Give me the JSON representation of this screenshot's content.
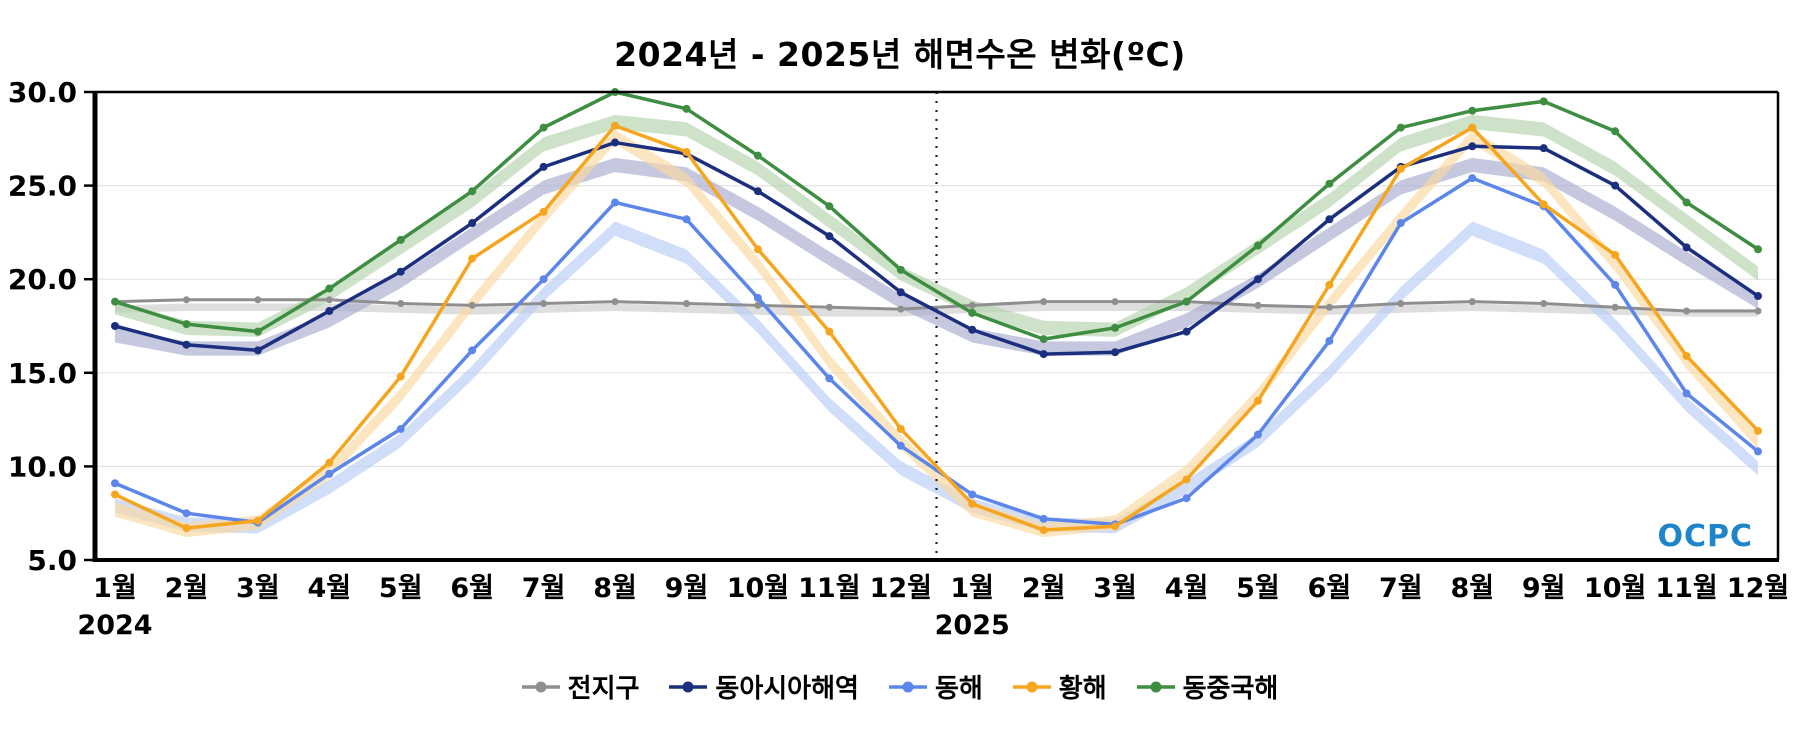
{
  "chart_data": {
    "type": "line",
    "title": "2024년 - 2025년 해면수온 변화(ºC)",
    "xlabel": "",
    "ylabel": "",
    "ylim": [
      5.0,
      30.0
    ],
    "yticks": [
      5.0,
      10.0,
      15.0,
      20.0,
      25.0,
      30.0
    ],
    "grid": true,
    "legend_position": "bottom",
    "divider_index": 11.5,
    "watermark": "OCPC",
    "watermark_color": "#1e86c8",
    "x_tick_labels": [
      "1월",
      "2월",
      "3월",
      "4월",
      "5월",
      "6월",
      "7월",
      "8월",
      "9월",
      "10월",
      "11월",
      "12월",
      "1월",
      "2월",
      "3월",
      "4월",
      "5월",
      "6월",
      "7월",
      "8월",
      "9월",
      "10월",
      "11월",
      "12월"
    ],
    "year_labels": [
      {
        "text": "2024",
        "index": 0
      },
      {
        "text": "2025",
        "index": 12
      }
    ],
    "series": [
      {
        "name": "전지구",
        "color": "#8f8f8f",
        "band_color": "#cccccc",
        "band_half_width": 0.2,
        "line_width": 3,
        "marker_radius": 3.5,
        "values": [
          18.8,
          18.9,
          18.9,
          18.9,
          18.7,
          18.6,
          18.7,
          18.8,
          18.7,
          18.6,
          18.5,
          18.4,
          18.6,
          18.8,
          18.8,
          18.8,
          18.6,
          18.5,
          18.7,
          18.8,
          18.7,
          18.5,
          18.3,
          18.3
        ],
        "band_values": [
          18.4,
          18.5,
          18.5,
          18.5,
          18.4,
          18.3,
          18.4,
          18.5,
          18.4,
          18.3,
          18.2,
          18.2,
          18.4,
          18.5,
          18.5,
          18.5,
          18.4,
          18.3,
          18.4,
          18.5,
          18.4,
          18.3,
          18.2,
          18.2
        ]
      },
      {
        "name": "동아시아해역",
        "color": "#1b2f7e",
        "band_color": "#a7abce",
        "band_half_width": 0.38,
        "line_width": 3.5,
        "marker_radius": 4,
        "values": [
          17.5,
          16.5,
          16.2,
          18.3,
          20.4,
          23.0,
          26.0,
          27.3,
          26.7,
          24.7,
          22.3,
          19.3,
          17.3,
          16.0,
          16.1,
          17.2,
          20.0,
          23.2,
          26.0,
          27.1,
          27.0,
          25.0,
          21.7,
          19.1
        ],
        "band_values": [
          17.0,
          16.3,
          16.3,
          17.8,
          19.9,
          22.4,
          24.9,
          26.1,
          25.6,
          23.5,
          21.1,
          18.8,
          17.0,
          16.3,
          16.3,
          17.8,
          19.9,
          22.4,
          24.9,
          26.1,
          25.6,
          23.5,
          21.1,
          18.8
        ]
      },
      {
        "name": "동해",
        "color": "#5c86ea",
        "band_color": "#b7ccf6",
        "band_half_width": 0.38,
        "line_width": 3.5,
        "marker_radius": 4,
        "values": [
          9.1,
          7.5,
          7.0,
          9.6,
          12.0,
          16.2,
          20.0,
          24.1,
          23.2,
          19.0,
          14.7,
          11.1,
          8.5,
          7.2,
          6.9,
          8.3,
          11.7,
          16.7,
          23.0,
          25.4,
          23.9,
          19.7,
          13.9,
          10.8
        ],
        "band_values": [
          7.9,
          6.9,
          6.8,
          8.9,
          11.4,
          15.0,
          19.2,
          22.7,
          21.2,
          17.5,
          13.3,
          9.9,
          7.9,
          6.9,
          6.8,
          8.9,
          11.4,
          15.0,
          19.2,
          22.7,
          21.2,
          17.5,
          13.3,
          9.9
        ]
      },
      {
        "name": "황해",
        "color": "#f6a51f",
        "band_color": "#fbd9a0",
        "band_half_width": 0.38,
        "line_width": 3.5,
        "marker_radius": 4,
        "values": [
          8.5,
          6.7,
          7.1,
          10.2,
          14.8,
          21.1,
          23.6,
          28.2,
          26.8,
          21.6,
          17.2,
          12.0,
          8.0,
          6.6,
          6.8,
          9.3,
          13.5,
          19.7,
          25.9,
          28.1,
          24.0,
          21.3,
          15.9,
          11.9
        ],
        "band_values": [
          7.7,
          6.6,
          7.0,
          9.7,
          13.8,
          18.7,
          23.3,
          27.6,
          25.3,
          20.8,
          15.6,
          11.3,
          7.7,
          6.6,
          7.0,
          9.7,
          13.8,
          18.7,
          23.3,
          27.6,
          25.3,
          20.8,
          15.6,
          11.3
        ]
      },
      {
        "name": "동중국해",
        "color": "#3e8e41",
        "band_color": "#b2d3ab",
        "band_half_width": 0.38,
        "line_width": 3.5,
        "marker_radius": 4,
        "values": [
          18.8,
          17.6,
          17.2,
          19.5,
          22.1,
          24.7,
          28.1,
          30.0,
          29.1,
          26.6,
          23.9,
          20.5,
          18.2,
          16.8,
          17.4,
          18.8,
          21.8,
          25.1,
          28.1,
          29.0,
          29.5,
          27.9,
          24.1,
          21.6
        ],
        "band_values": [
          18.5,
          17.4,
          17.3,
          19.2,
          21.7,
          24.2,
          27.2,
          28.4,
          28.0,
          25.9,
          23.1,
          20.3,
          18.5,
          17.4,
          17.3,
          19.2,
          21.7,
          24.2,
          27.2,
          28.4,
          28.0,
          25.9,
          23.1,
          20.3
        ]
      }
    ]
  }
}
